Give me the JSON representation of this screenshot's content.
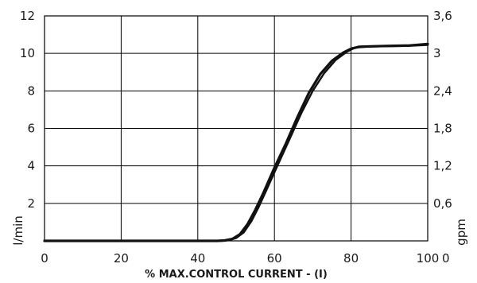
{
  "chart_data": {
    "type": "line",
    "xlabel": "% MAX.CONTROL CURRENT - (I)",
    "ylabel_left": "l/min",
    "ylabel_right": "gpm",
    "xlim": [
      0,
      100
    ],
    "ylim_left": [
      0,
      12
    ],
    "ylim_right": [
      0,
      3.6
    ],
    "x_ticks": [
      "0",
      "20",
      "40",
      "60",
      "80",
      "100"
    ],
    "y_ticks_left": [
      "2",
      "4",
      "6",
      "8",
      "10",
      "12"
    ],
    "y_ticks_right": [
      "0",
      "0,6",
      "1,2",
      "1,8",
      "2,4",
      "3",
      "3,6"
    ],
    "grid": true,
    "series": [
      {
        "values": [
          [
            0,
            0
          ],
          [
            45,
            0
          ],
          [
            47,
            0.02
          ],
          [
            49,
            0.1
          ],
          [
            51,
            0.35
          ],
          [
            53,
            0.9
          ],
          [
            55,
            1.65
          ],
          [
            57,
            2.5
          ],
          [
            60,
            3.9
          ],
          [
            63,
            5.2
          ],
          [
            66,
            6.6
          ],
          [
            69,
            7.9
          ],
          [
            72,
            8.9
          ],
          [
            75,
            9.6
          ],
          [
            78,
            10.05
          ],
          [
            80,
            10.25
          ],
          [
            82,
            10.35
          ],
          [
            86,
            10.38
          ],
          [
            90,
            10.4
          ],
          [
            95,
            10.42
          ],
          [
            100,
            10.5
          ]
        ]
      },
      {
        "values": [
          [
            0,
            0
          ],
          [
            46,
            0
          ],
          [
            48,
            0.03
          ],
          [
            50,
            0.15
          ],
          [
            52,
            0.45
          ],
          [
            54,
            1.05
          ],
          [
            56,
            1.85
          ],
          [
            58,
            2.75
          ],
          [
            61,
            4.1
          ],
          [
            64,
            5.45
          ],
          [
            67,
            6.8
          ],
          [
            70,
            8.0
          ],
          [
            73,
            8.95
          ],
          [
            76,
            9.65
          ],
          [
            79,
            10.1
          ],
          [
            81,
            10.3
          ],
          [
            84,
            10.36
          ],
          [
            90,
            10.38
          ],
          [
            95,
            10.4
          ],
          [
            100,
            10.45
          ]
        ]
      }
    ]
  }
}
